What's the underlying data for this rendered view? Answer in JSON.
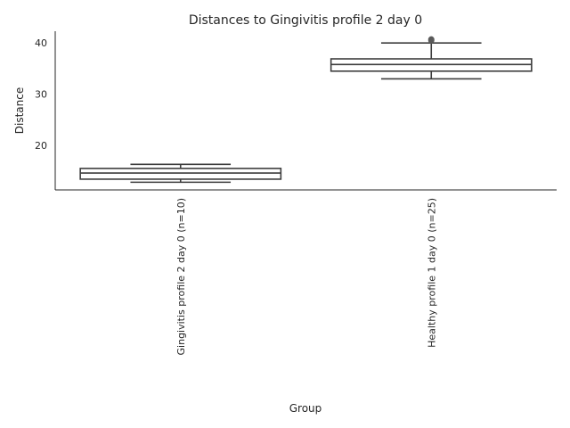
{
  "chart_data": {
    "type": "box",
    "title": "Distances to Gingivitis profile 2 day 0",
    "xlabel": "Group",
    "ylabel": "Distance",
    "ylim": [
      11.3,
      42.3
    ],
    "yticks": [
      20,
      30,
      40
    ],
    "categories": [
      "Gingivitis profile 2 day 0 (n=10)",
      "Healthy profile 1 day 0 (n=25)"
    ],
    "boxes": [
      {
        "whisker_low": 12.8,
        "q1": 13.4,
        "median": 14.6,
        "q3": 15.5,
        "whisker_high": 16.3,
        "outliers": []
      },
      {
        "whisker_low": 33.0,
        "q1": 34.5,
        "median": 35.8,
        "q3": 36.9,
        "whisker_high": 40.0,
        "outliers": [
          40.5,
          40.7
        ]
      }
    ],
    "grid": false,
    "style": {
      "line_color": "#3d3d3d",
      "box_fill": "#ffffff",
      "outlier_color": "#5a5a5a"
    }
  }
}
